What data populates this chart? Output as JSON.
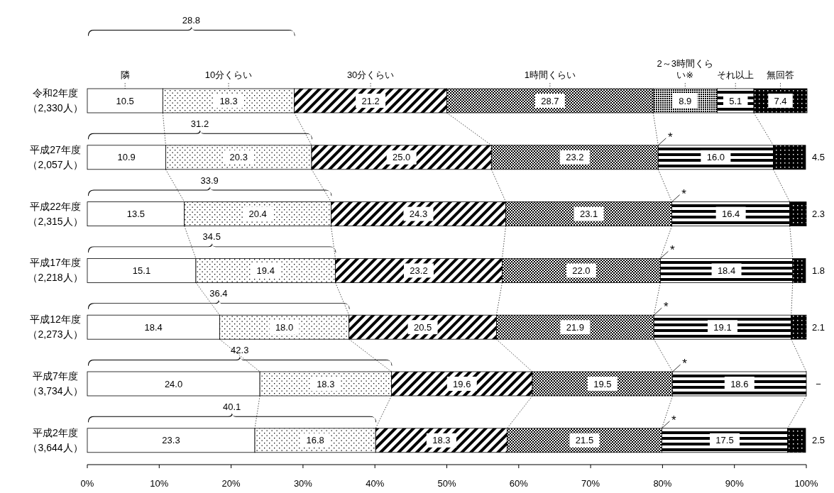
{
  "chart_data": {
    "type": "bar",
    "orientation": "horizontal",
    "stacked": true,
    "legend": "top",
    "categories": [
      "令和2年度（2,330人）",
      "平成27年度（2,057人）",
      "平成22年度（2,315人）",
      "平成17年度（2,218人）",
      "平成12年度（2,273人）",
      "平成7年度（3,734人）",
      "平成2年度（3,644人）"
    ],
    "series": [
      {
        "name": "隣",
        "color": "#ffffff",
        "values": [
          10.5,
          10.9,
          13.5,
          15.1,
          18.4,
          24.0,
          23.3
        ],
        "value_labels": [
          "10.5",
          "10.9",
          "13.5",
          "15.1",
          "18.4",
          "24.0",
          "23.3"
        ]
      },
      {
        "name": "10分くらい",
        "color": "#000000",
        "values": [
          18.3,
          20.3,
          20.4,
          19.4,
          18.0,
          18.3,
          16.8
        ],
        "value_labels": [
          "18.3",
          "20.3",
          "20.4",
          "19.4",
          "18.0",
          "18.3",
          "16.8"
        ]
      },
      {
        "name": "30分くらい",
        "color": "#000000",
        "values": [
          21.2,
          25.0,
          24.3,
          23.2,
          20.5,
          19.6,
          18.3
        ],
        "value_labels": [
          "21.2",
          "25.0",
          "24.3",
          "23.2",
          "20.5",
          "19.6",
          "18.3"
        ]
      },
      {
        "name": "1時間くらい",
        "color": "#000000",
        "values": [
          28.7,
          23.2,
          23.1,
          22.0,
          21.9,
          19.5,
          21.5
        ],
        "value_labels": [
          "28.7",
          "23.2",
          "23.1",
          "22.0",
          "21.9",
          "19.5",
          "21.5"
        ]
      },
      {
        "name": "2～3時間くらい※",
        "color": "#000000",
        "values": [
          8.9,
          null,
          null,
          null,
          null,
          null,
          null
        ],
        "value_labels": [
          "8.9",
          "*",
          "*",
          "*",
          "*",
          "*",
          "*"
        ]
      },
      {
        "name": "それ以上",
        "color": "#000000",
        "values": [
          5.1,
          16.0,
          16.4,
          18.4,
          19.1,
          18.6,
          17.5
        ],
        "value_labels": [
          "5.1",
          "16.0",
          "16.4",
          "18.4",
          "19.1",
          "18.6",
          "17.5"
        ]
      },
      {
        "name": "無回答",
        "color": "#000000",
        "values": [
          7.4,
          4.5,
          2.3,
          1.8,
          2.1,
          null,
          2.5
        ],
        "value_labels": [
          "7.4",
          "4.5",
          "2.3",
          "1.8",
          "2.1",
          "−",
          "2.5"
        ]
      }
    ],
    "xlim": [
      0,
      100
    ],
    "xticks": [
      {
        "value": 0,
        "label": "0%"
      },
      {
        "value": 10,
        "label": "10%"
      },
      {
        "value": 20,
        "label": "20%"
      },
      {
        "value": 30,
        "label": "30%"
      },
      {
        "value": 40,
        "label": "40%"
      },
      {
        "value": 50,
        "label": "50%"
      },
      {
        "value": 60,
        "label": "60%"
      },
      {
        "value": 70,
        "label": "70%"
      },
      {
        "value": 80,
        "label": "80%"
      },
      {
        "value": 90,
        "label": "90%"
      },
      {
        "value": 100,
        "label": "100%"
      }
    ],
    "annotations": [
      "28.8",
      "31.2",
      "33.9",
      "34.5",
      "36.4",
      "42.3",
      "40.1"
    ]
  }
}
